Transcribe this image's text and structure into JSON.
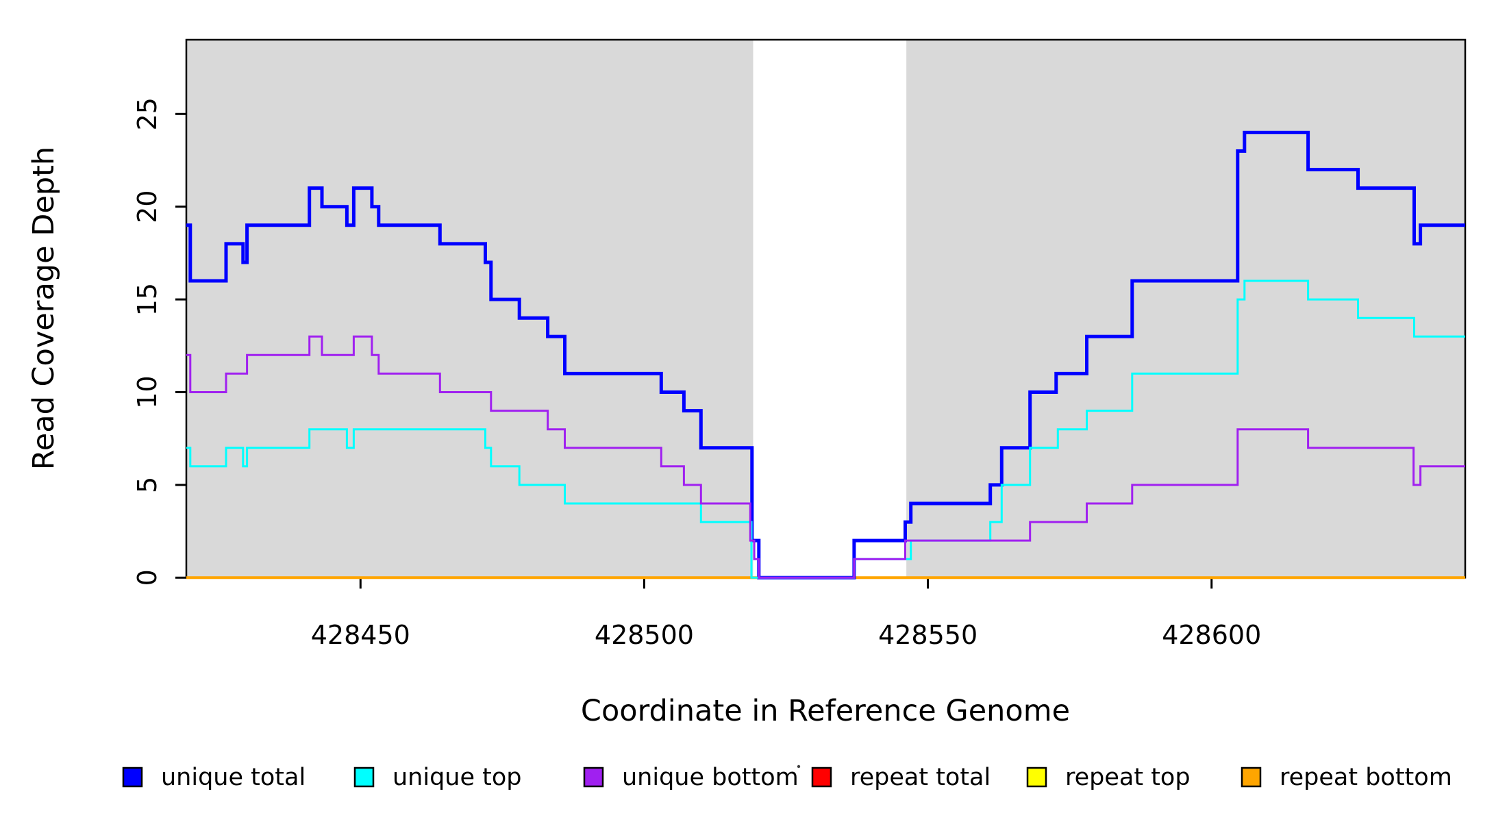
{
  "figure": {
    "xlabel": "Coordinate in Reference Genome",
    "ylabel": "Read Coverage Depth"
  },
  "axes": {
    "x_ticks": [
      428450,
      428500,
      428550,
      428600
    ],
    "y_ticks": [
      0,
      5,
      10,
      15,
      20,
      25
    ]
  },
  "chart_data": {
    "type": "line",
    "step_mode": "step-after",
    "title": "",
    "xlabel": "Coordinate in Reference Genome",
    "ylabel": "Read Coverage Depth",
    "xlim": [
      428419.3,
      428644.7
    ],
    "ylim": [
      0,
      29
    ],
    "grid": false,
    "legend_position": "bottom",
    "background_color": "#ffffff",
    "shaded_region_color": "#D9D9D9",
    "shaded_regions": [
      [
        428419.3,
        428519.2
      ],
      [
        428546.2,
        428644.7
      ]
    ],
    "series": [
      {
        "name": "repeat total",
        "color": "#FF0000",
        "width": 3,
        "points": [
          [
            428419.3,
            0
          ],
          [
            428644.7,
            0
          ]
        ]
      },
      {
        "name": "repeat top",
        "color": "#FFFF00",
        "width": 3,
        "points": [
          [
            428419.3,
            0
          ],
          [
            428644.7,
            0
          ]
        ]
      },
      {
        "name": "repeat bottom",
        "color": "#FFA500",
        "width": 4,
        "points": [
          [
            428419.3,
            0
          ],
          [
            428644.7,
            0
          ]
        ]
      },
      {
        "name": "unique total",
        "color": "#0000FF",
        "width": 5,
        "points": [
          [
            428419.3,
            19
          ],
          [
            428420,
            16
          ],
          [
            428426.3,
            18
          ],
          [
            428429.3,
            17
          ],
          [
            428430,
            19
          ],
          [
            428441,
            21
          ],
          [
            428443.2,
            20
          ],
          [
            428447.6,
            19
          ],
          [
            428448.8,
            21
          ],
          [
            428452,
            20
          ],
          [
            428453.2,
            19
          ],
          [
            428464,
            18
          ],
          [
            428472,
            17
          ],
          [
            428473,
            15
          ],
          [
            428478,
            14
          ],
          [
            428483,
            13
          ],
          [
            428486,
            11
          ],
          [
            428503,
            10
          ],
          [
            428507,
            9
          ],
          [
            428510,
            7
          ],
          [
            428519,
            2
          ],
          [
            428520.2,
            0
          ],
          [
            428537,
            2
          ],
          [
            428546,
            3
          ],
          [
            428547,
            4
          ],
          [
            428561,
            5
          ],
          [
            428563,
            7
          ],
          [
            428568,
            10
          ],
          [
            428572.6,
            11
          ],
          [
            428578,
            13
          ],
          [
            428586,
            16
          ],
          [
            428604.6,
            23
          ],
          [
            428605.8,
            24
          ],
          [
            428617,
            22
          ],
          [
            428625.8,
            21
          ],
          [
            428635.7,
            18
          ],
          [
            428636.8,
            19
          ],
          [
            428644.7,
            19
          ]
        ]
      },
      {
        "name": "unique top",
        "color": "#00FFFF",
        "width": 3,
        "points": [
          [
            428419.3,
            7
          ],
          [
            428420,
            6
          ],
          [
            428426.3,
            7
          ],
          [
            428429.3,
            6
          ],
          [
            428430,
            7
          ],
          [
            428441,
            8
          ],
          [
            428447.6,
            7
          ],
          [
            428448.8,
            8
          ],
          [
            428472,
            7
          ],
          [
            428473,
            6
          ],
          [
            428478,
            5
          ],
          [
            428486,
            4
          ],
          [
            428510,
            3
          ],
          [
            428518.9,
            0
          ],
          [
            428537,
            1
          ],
          [
            428547,
            2
          ],
          [
            428561,
            3
          ],
          [
            428563,
            5
          ],
          [
            428568,
            7
          ],
          [
            428572.9,
            8
          ],
          [
            428578,
            9
          ],
          [
            428586,
            11
          ],
          [
            428604.6,
            15
          ],
          [
            428605.8,
            16
          ],
          [
            428617,
            15
          ],
          [
            428625.8,
            14
          ],
          [
            428635.7,
            13
          ],
          [
            428644.7,
            13
          ]
        ]
      },
      {
        "name": "unique bottom",
        "color": "#A020F0",
        "width": 3,
        "points": [
          [
            428419.3,
            12
          ],
          [
            428420,
            10
          ],
          [
            428426.3,
            11
          ],
          [
            428430,
            12
          ],
          [
            428441,
            13
          ],
          [
            428443.2,
            12
          ],
          [
            428448.8,
            13
          ],
          [
            428452,
            12
          ],
          [
            428453.2,
            11
          ],
          [
            428464,
            10
          ],
          [
            428473,
            9
          ],
          [
            428483,
            8
          ],
          [
            428486,
            7
          ],
          [
            428503,
            6
          ],
          [
            428507,
            5
          ],
          [
            428510,
            4
          ],
          [
            428518.7,
            2
          ],
          [
            428519.4,
            1
          ],
          [
            428520.2,
            0
          ],
          [
            428537,
            1
          ],
          [
            428546,
            2
          ],
          [
            428568,
            3
          ],
          [
            428578,
            4
          ],
          [
            428586,
            5
          ],
          [
            428604.6,
            8
          ],
          [
            428617,
            7
          ],
          [
            428635.6,
            5
          ],
          [
            428636.8,
            6
          ],
          [
            428644.7,
            6
          ]
        ]
      }
    ]
  },
  "legend": {
    "items": [
      {
        "label": "unique total",
        "color": "#0000FF"
      },
      {
        "label": "unique top",
        "color": "#00FFFF"
      },
      {
        "label": "unique bottom",
        "color": "#A020F0"
      },
      {
        "label": "repeat total",
        "color": "#FF0000"
      },
      {
        "label": "repeat top",
        "color": "#FFFF00"
      },
      {
        "label": "repeat bottom",
        "color": "#FFA500"
      }
    ],
    "swatch_border_color": "#000000",
    "stray_mark_color": "#404040"
  }
}
